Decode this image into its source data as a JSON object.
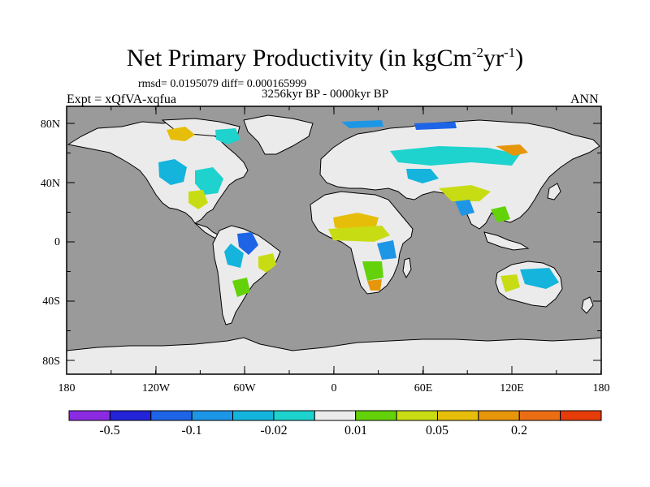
{
  "title": {
    "main": "Net Primary Productivity (in kgCm",
    "sup1": "-2",
    "mid": "yr",
    "sup2": "-1",
    "end": ")"
  },
  "stats_line": "rmsd= 0.0195079 diff= 0.000165999",
  "subtitle": "3256kyr BP - 0000kyr BP",
  "left_label": "Expt = xQfVA-xqfua",
  "right_label": "ANN",
  "lat_labels": [
    "80N",
    "40N",
    "0",
    "40S",
    "80S"
  ],
  "lon_labels": [
    "180",
    "120W",
    "60W",
    "0",
    "60E",
    "120E",
    "180"
  ],
  "colorbar": {
    "colors": [
      "#8a2be2",
      "#2323d8",
      "#1e64e6",
      "#1e96e6",
      "#14b4dc",
      "#1ed2cd",
      "#ebebeb",
      "#64d20a",
      "#c8dc14",
      "#e6be0a",
      "#e6960a",
      "#eb6e14",
      "#e63c0a"
    ],
    "labels": [
      "-0.5",
      "-0.1",
      "-0.02",
      "0.01",
      "0.05",
      "0.2"
    ]
  },
  "map_colors": {
    "ocean": "#9a9a9a",
    "land": "#ebebeb"
  }
}
